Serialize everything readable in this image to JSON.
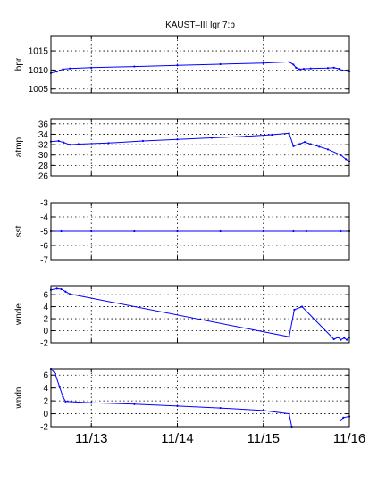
{
  "chart_data": {
    "title": "KAUST–III  lgr 7:b",
    "x_tick_labels": [
      "11/13",
      "11/14",
      "11/15",
      "11/16"
    ],
    "x_ticks": [
      13.0,
      14.0,
      15.0,
      16.0
    ],
    "xlim": [
      12.53,
      16.0
    ],
    "grid": true,
    "line_color": "#0000ff",
    "panels": [
      {
        "type": "line",
        "ylabel": "bpr",
        "ylim": [
          1004,
          1019
        ],
        "yticks": [
          1005,
          1010,
          1015
        ],
        "x": [
          12.53,
          12.6,
          12.67,
          12.75,
          13.0,
          13.5,
          14.0,
          14.5,
          15.0,
          15.3,
          15.35,
          15.38,
          15.42,
          15.47,
          15.55,
          15.75,
          15.82,
          15.88,
          15.92,
          16.0
        ],
        "y": [
          1009.2,
          1009.6,
          1010.2,
          1010.4,
          1010.6,
          1010.9,
          1011.2,
          1011.5,
          1011.8,
          1012.1,
          1011.4,
          1010.6,
          1010.2,
          1010.3,
          1010.4,
          1010.5,
          1010.6,
          1010.3,
          1009.9,
          1009.6
        ]
      },
      {
        "type": "line",
        "ylabel": "atmp",
        "ylim": [
          26,
          37
        ],
        "yticks": [
          26,
          28,
          30,
          32,
          34,
          36
        ],
        "x": [
          12.53,
          12.62,
          12.68,
          12.75,
          12.85,
          13.2,
          13.6,
          14.0,
          14.4,
          14.8,
          15.1,
          15.3,
          15.35,
          15.42,
          15.48,
          15.55,
          15.65,
          15.75,
          15.9,
          15.96,
          16.0
        ],
        "y": [
          32.6,
          32.7,
          32.4,
          32.0,
          32.1,
          32.3,
          32.7,
          33.0,
          33.3,
          33.6,
          33.9,
          34.2,
          31.7,
          32.1,
          32.5,
          32.1,
          31.6,
          31.1,
          30.0,
          29.2,
          28.8
        ]
      },
      {
        "type": "line",
        "ylabel": "sst",
        "ylim": [
          -7,
          -3
        ],
        "yticks": [
          -7,
          -6,
          -5,
          -4,
          -3
        ],
        "x": [
          12.53,
          12.65,
          13.0,
          13.5,
          14.0,
          14.5,
          15.0,
          15.35,
          15.5,
          15.9,
          16.0
        ],
        "y": [
          -5,
          -5,
          -5,
          -5,
          -5,
          -5,
          -5,
          -5,
          -5,
          -5,
          -5
        ]
      },
      {
        "type": "line",
        "ylabel": "wnde",
        "ylim": [
          -2,
          7.5
        ],
        "yticks": [
          -2,
          0,
          2,
          4,
          6
        ],
        "x": [
          12.53,
          12.6,
          12.65,
          12.7,
          12.75,
          15.3,
          15.36,
          15.45,
          15.82,
          15.87,
          15.9,
          15.94,
          15.97,
          16.0
        ],
        "y": [
          6.8,
          7.0,
          6.9,
          6.5,
          6.1,
          -1.0,
          3.5,
          4.0,
          -1.4,
          -1.1,
          -1.5,
          -1.2,
          -1.5,
          -1.1
        ]
      },
      {
        "type": "line",
        "ylabel": "wndn",
        "ylim": [
          -2,
          7
        ],
        "yticks": [
          -2,
          0,
          2,
          4,
          6
        ],
        "segments": [
          {
            "x": [
              12.53,
              12.58,
              12.63,
              12.67,
              12.7,
              13.0,
              13.5,
              14.0,
              14.5,
              15.0,
              15.3,
              15.33
            ],
            "y": [
              7.0,
              6.2,
              4.2,
              2.6,
              1.9,
              1.7,
              1.5,
              1.2,
              0.9,
              0.5,
              0.0,
              -2.0
            ]
          },
          {
            "x": [
              15.9,
              15.93,
              16.0
            ],
            "y": [
              -1.0,
              -0.6,
              -0.4
            ]
          }
        ]
      }
    ]
  }
}
